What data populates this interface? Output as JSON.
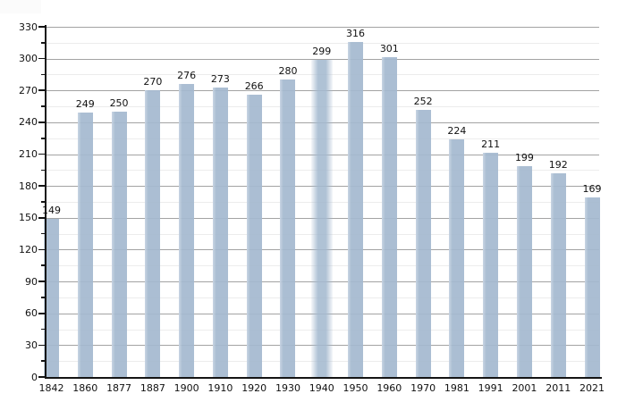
{
  "chart_data": {
    "type": "bar",
    "title": "",
    "xlabel": "",
    "ylabel": "",
    "categories": [
      "1842",
      "1860",
      "1877",
      "1887",
      "1900",
      "1910",
      "1920",
      "1930",
      "1940",
      "1950",
      "1960",
      "1970",
      "1981",
      "1991",
      "2001",
      "2011",
      "2021"
    ],
    "values": [
      149,
      249,
      250,
      270,
      276,
      273,
      266,
      280,
      299,
      316,
      301,
      252,
      224,
      211,
      199,
      192,
      169
    ],
    "ylim": [
      0,
      330
    ],
    "ytick_step": 30,
    "minor_grid_step": 15,
    "y_tick_labels": [
      "0",
      "30",
      "60",
      "90",
      "120",
      "150",
      "180",
      "210",
      "240",
      "270",
      "300",
      "330"
    ],
    "grid": "horizontal, major + faint minor lines",
    "legend": "none",
    "soft_bar_category": "1940",
    "colors": {
      "bar": "#a4b9cf",
      "bar_edge_highlight": "#c6d3e2",
      "axis": "#141414",
      "major_grid": "#a3a3a3",
      "minor_grid": "#ececec",
      "label_text": "#111111",
      "background": "#ffffff"
    }
  }
}
